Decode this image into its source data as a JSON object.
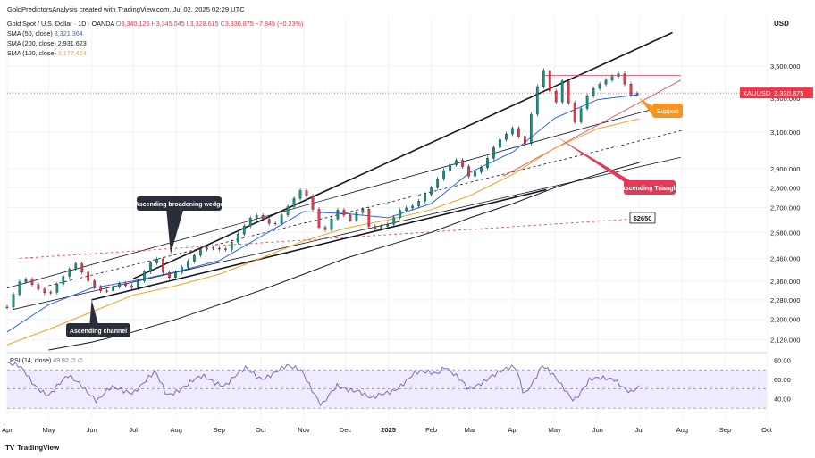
{
  "header": {
    "publisher": "GoldPredictorsAnalysis created with TradingView.com, Jul 02, 2025 02:29 UTC",
    "symbol_line": "Gold Spot / U.S. Dollar · 1D · OANDA",
    "ohlc": {
      "o_label": "O",
      "o": "3,340.125",
      "h_label": "H",
      "h": "3,345.045",
      "l_label": "L",
      "l": "3,328.615",
      "c_label": "C",
      "c": "3,330.875",
      "change": "−7.845 (−0.23%)"
    },
    "indicators": [
      {
        "label": "SMA (50, close)",
        "value": "3,321.364",
        "color": "#2962ff"
      },
      {
        "label": "SMA (200, close)",
        "value": "2,931.623",
        "color": "#131722"
      },
      {
        "label": "SMA (100, close)",
        "value": "3,177.424",
        "color": "#f7a21b"
      }
    ]
  },
  "currency_label": "USD",
  "branding": "TradingView",
  "chart_data": {
    "type": "line",
    "title": "Gold Spot / U.S. Dollar · 1D · OANDA",
    "price_axis": {
      "ticks": [
        3500,
        3300,
        3100,
        2900,
        2800,
        2700,
        2580,
        2460,
        2360,
        2280,
        2200,
        2120
      ],
      "tick_labels": [
        "3,500.000",
        "3,300.000",
        "3,100.000",
        "2,900.000",
        "2,800.000",
        "2,700.000",
        "2,580.000",
        "2,460.000",
        "2,360.000",
        "2,280.000",
        "2,200.000",
        "2,120.000"
      ],
      "scale": "log",
      "range": [
        2080,
        3760
      ]
    },
    "time_axis": {
      "labels": [
        "Apr",
        "May",
        "Jun",
        "Jul",
        "Aug",
        "Sep",
        "Oct",
        "Nov",
        "Dec",
        "2025",
        "Feb",
        "Mar",
        "Apr",
        "May",
        "Jun",
        "Jul",
        "Aug",
        "Sep",
        "Oct"
      ],
      "range": [
        "2024-04-01",
        "2025-10-01"
      ]
    },
    "price_series": {
      "name": "XAUUSD",
      "points": [
        [
          "2024-04-01",
          2250
        ],
        [
          "2024-04-12",
          2380
        ],
        [
          "2024-04-22",
          2330
        ],
        [
          "2024-05-01",
          2300
        ],
        [
          "2024-05-10",
          2370
        ],
        [
          "2024-05-20",
          2440
        ],
        [
          "2024-06-01",
          2340
        ],
        [
          "2024-06-10",
          2310
        ],
        [
          "2024-06-20",
          2350
        ],
        [
          "2024-07-01",
          2330
        ],
        [
          "2024-07-17",
          2470
        ],
        [
          "2024-07-25",
          2365
        ],
        [
          "2024-08-05",
          2420
        ],
        [
          "2024-08-20",
          2510
        ],
        [
          "2024-09-06",
          2500
        ],
        [
          "2024-09-26",
          2670
        ],
        [
          "2024-10-10",
          2610
        ],
        [
          "2024-10-30",
          2790
        ],
        [
          "2024-11-05",
          2740
        ],
        [
          "2024-11-14",
          2565
        ],
        [
          "2024-11-25",
          2690
        ],
        [
          "2024-12-06",
          2630
        ],
        [
          "2024-12-12",
          2720
        ],
        [
          "2024-12-19",
          2590
        ],
        [
          "2025-01-01",
          2620
        ],
        [
          "2025-01-10",
          2690
        ],
        [
          "2025-01-20",
          2710
        ],
        [
          "2025-02-01",
          2800
        ],
        [
          "2025-02-11",
          2900
        ],
        [
          "2025-02-20",
          2950
        ],
        [
          "2025-02-28",
          2860
        ],
        [
          "2025-03-10",
          2910
        ],
        [
          "2025-03-20",
          3040
        ],
        [
          "2025-04-03",
          3140
        ],
        [
          "2025-04-08",
          2980
        ],
        [
          "2025-04-22",
          3500
        ],
        [
          "2025-05-01",
          3240
        ],
        [
          "2025-05-06",
          3420
        ],
        [
          "2025-05-15",
          3150
        ],
        [
          "2025-05-26",
          3340
        ],
        [
          "2025-06-05",
          3400
        ],
        [
          "2025-06-13",
          3440
        ],
        [
          "2025-06-16",
          3450
        ],
        [
          "2025-06-25",
          3320
        ],
        [
          "2025-07-01",
          3330
        ]
      ]
    },
    "sma_series": [
      {
        "name": "SMA 50",
        "color": "#2962ff",
        "points": [
          [
            "2024-04-01",
            2150
          ],
          [
            "2024-05-01",
            2260
          ],
          [
            "2024-06-01",
            2330
          ],
          [
            "2024-07-01",
            2360
          ],
          [
            "2024-08-01",
            2400
          ],
          [
            "2024-09-01",
            2450
          ],
          [
            "2024-10-01",
            2560
          ],
          [
            "2024-11-01",
            2680
          ],
          [
            "2024-12-01",
            2670
          ],
          [
            "2025-01-01",
            2650
          ],
          [
            "2025-02-01",
            2720
          ],
          [
            "2025-03-01",
            2880
          ],
          [
            "2025-04-01",
            2990
          ],
          [
            "2025-05-01",
            3180
          ],
          [
            "2025-06-01",
            3290
          ],
          [
            "2025-07-01",
            3321
          ]
        ]
      },
      {
        "name": "SMA 100",
        "color": "#f7a21b",
        "points": [
          [
            "2024-04-01",
            2100
          ],
          [
            "2024-05-01",
            2160
          ],
          [
            "2024-06-01",
            2230
          ],
          [
            "2024-07-01",
            2300
          ],
          [
            "2024-08-01",
            2340
          ],
          [
            "2024-09-01",
            2390
          ],
          [
            "2024-10-01",
            2460
          ],
          [
            "2024-11-01",
            2540
          ],
          [
            "2024-12-01",
            2600
          ],
          [
            "2025-01-01",
            2640
          ],
          [
            "2025-02-01",
            2690
          ],
          [
            "2025-03-01",
            2760
          ],
          [
            "2025-04-01",
            2870
          ],
          [
            "2025-05-01",
            3010
          ],
          [
            "2025-06-01",
            3120
          ],
          [
            "2025-07-01",
            3177
          ]
        ]
      },
      {
        "name": "SMA 200",
        "color": "#131722",
        "points": [
          [
            "2024-05-01",
            2080
          ],
          [
            "2024-06-01",
            2110
          ],
          [
            "2024-07-01",
            2150
          ],
          [
            "2024-08-01",
            2200
          ],
          [
            "2024-09-01",
            2260
          ],
          [
            "2024-10-01",
            2320
          ],
          [
            "2024-11-01",
            2390
          ],
          [
            "2024-12-01",
            2460
          ],
          [
            "2025-01-01",
            2520
          ],
          [
            "2025-02-01",
            2580
          ],
          [
            "2025-03-01",
            2650
          ],
          [
            "2025-04-01",
            2720
          ],
          [
            "2025-05-01",
            2800
          ],
          [
            "2025-06-01",
            2870
          ],
          [
            "2025-07-01",
            2932
          ]
        ]
      }
    ],
    "trend_lines": [
      {
        "name": "Ascending broadening wedge upper",
        "color": "#131722",
        "from": [
          "2024-07-01",
          2370
        ],
        "to": [
          "2025-07-25",
          3720
        ]
      },
      {
        "name": "Ascending broadening wedge lower",
        "color": "#131722",
        "from": [
          "2024-06-01",
          2280
        ],
        "to": [
          "2025-04-25",
          2790
        ]
      },
      {
        "name": "Ascending channel upper",
        "color": "#131722",
        "from": [
          "2024-04-01",
          2330
        ],
        "to": [
          "2025-07-18",
          3250
        ]
      },
      {
        "name": "Ascending channel lower",
        "color": "#131722",
        "from": [
          "2024-04-05",
          2240
        ],
        "to": [
          "2025-07-31",
          2960
        ]
      },
      {
        "name": "Dashed mid trend",
        "color": "#131722",
        "from": [
          "2024-05-01",
          2340
        ],
        "to": [
          "2025-08-01",
          3110
        ]
      },
      {
        "name": "Red dashed support",
        "color": "#f23645",
        "from": [
          "2024-04-10",
          2460
        ],
        "to": [
          "2025-07-10",
          2650
        ]
      },
      {
        "name": "Triangle resistance",
        "color": "#f23645",
        "from": [
          "2025-04-22",
          3440
        ],
        "to": [
          "2025-07-31",
          3440
        ]
      },
      {
        "name": "Triangle support",
        "color": "#f23645",
        "from": [
          "2025-03-25",
          2860
        ],
        "to": [
          "2025-07-31",
          3410
        ]
      }
    ],
    "current_price": {
      "label": "XAUUSD",
      "value": "3,330.875",
      "price": 3330.875
    },
    "annotations": [
      {
        "text": "Ascending broadening wedge",
        "anchor": [
          "2024-07-28",
          2480
        ]
      },
      {
        "text": "Ascending channel",
        "anchor": [
          "2024-06-01",
          2280
        ]
      },
      {
        "text": "Ascending Triangle",
        "anchor": [
          "2025-05-01",
          3080
        ]
      },
      {
        "text": "Support",
        "anchor": [
          "2025-07-01",
          3300
        ]
      },
      {
        "text": "$2650",
        "anchor": [
          "2025-07-10",
          2650
        ]
      }
    ],
    "rsi": {
      "name": "RSI (14, close)",
      "value": "49.92",
      "suffix": "∅ ∅",
      "ticks": [
        80,
        60,
        40
      ],
      "tick_labels": [
        "80.00",
        "60.00",
        "40.00"
      ],
      "upper": 70,
      "lower": 30,
      "ylim": [
        20,
        85
      ],
      "points": [
        [
          "2024-04-01",
          78
        ],
        [
          "2024-04-10",
          72
        ],
        [
          "2024-04-20",
          55
        ],
        [
          "2024-05-01",
          45
        ],
        [
          "2024-05-15",
          62
        ],
        [
          "2024-05-25",
          55
        ],
        [
          "2024-06-05",
          38
        ],
        [
          "2024-06-15",
          50
        ],
        [
          "2024-07-01",
          48
        ],
        [
          "2024-07-17",
          66
        ],
        [
          "2024-07-25",
          44
        ],
        [
          "2024-08-05",
          52
        ],
        [
          "2024-08-20",
          62
        ],
        [
          "2024-09-05",
          55
        ],
        [
          "2024-09-20",
          70
        ],
        [
          "2024-10-01",
          62
        ],
        [
          "2024-10-20",
          72
        ],
        [
          "2024-10-31",
          70
        ],
        [
          "2024-11-14",
          32
        ],
        [
          "2024-11-25",
          52
        ],
        [
          "2024-12-10",
          50
        ],
        [
          "2024-12-20",
          38
        ],
        [
          "2025-01-05",
          50
        ],
        [
          "2025-01-20",
          65
        ],
        [
          "2025-02-05",
          68
        ],
        [
          "2025-02-11",
          75
        ],
        [
          "2025-02-28",
          48
        ],
        [
          "2025-03-15",
          64
        ],
        [
          "2025-04-03",
          72
        ],
        [
          "2025-04-09",
          45
        ],
        [
          "2025-04-22",
          74
        ],
        [
          "2025-05-05",
          55
        ],
        [
          "2025-05-15",
          40
        ],
        [
          "2025-05-26",
          58
        ],
        [
          "2025-06-13",
          62
        ],
        [
          "2025-06-25",
          46
        ],
        [
          "2025-07-01",
          50
        ]
      ]
    }
  }
}
